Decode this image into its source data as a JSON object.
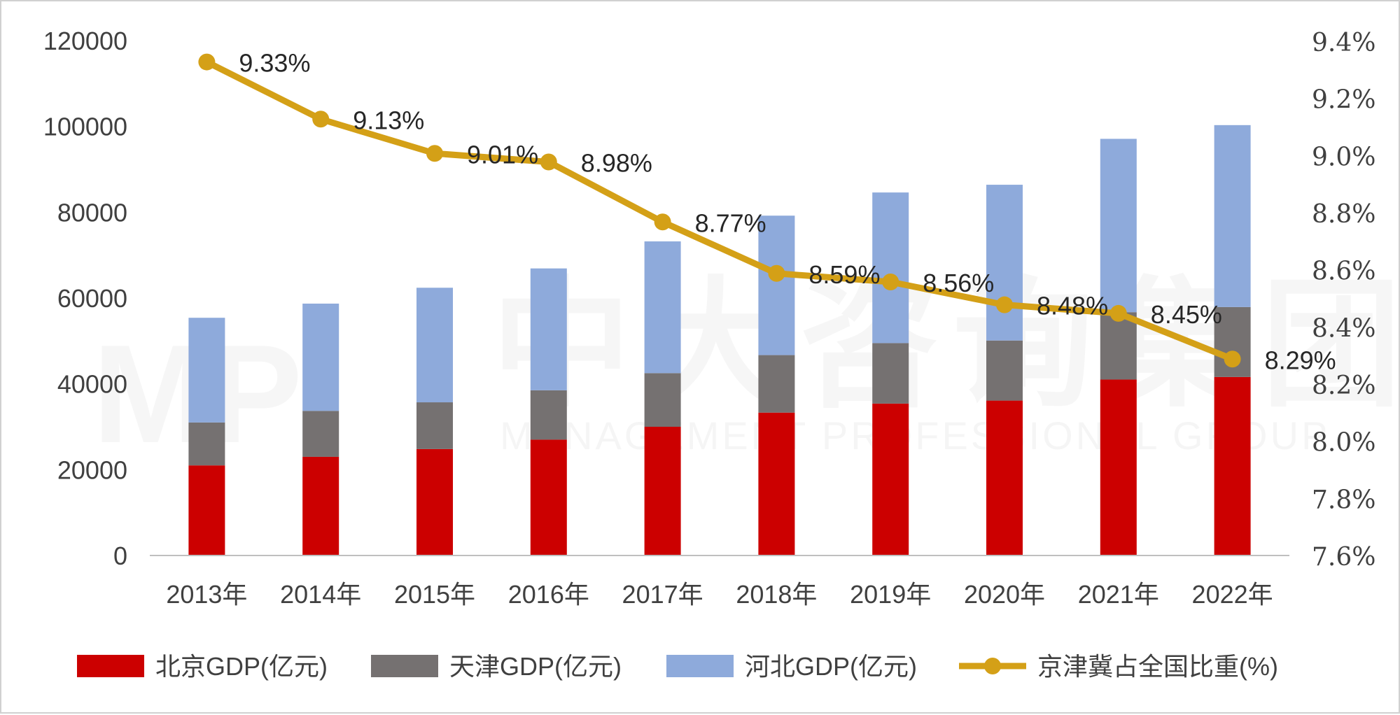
{
  "chart_data": {
    "type": "bar",
    "stacked": true,
    "categories": [
      "2013年",
      "2014年",
      "2015年",
      "2016年",
      "2017年",
      "2018年",
      "2019年",
      "2020年",
      "2021年",
      "2022年"
    ],
    "series": [
      {
        "name": "北京GDP(亿元)",
        "type": "bar",
        "axis": "left",
        "color": "#cc0000",
        "values": [
          21000,
          23000,
          24800,
          27000,
          30000,
          33300,
          35400,
          36100,
          41000,
          41600
        ]
      },
      {
        "name": "天津GDP(亿元)",
        "type": "bar",
        "axis": "left",
        "color": "#757171",
        "values": [
          10000,
          10700,
          10900,
          11500,
          12500,
          13400,
          14100,
          14000,
          15700,
          16300
        ]
      },
      {
        "name": "河北GDP(亿元)",
        "type": "bar",
        "axis": "left",
        "color": "#8eaadb",
        "values": [
          24400,
          25000,
          26700,
          28400,
          30700,
          32500,
          35100,
          36300,
          40400,
          42400
        ]
      },
      {
        "name": "京津冀占全国比重(%)",
        "type": "line",
        "axis": "right",
        "color": "#d4a017",
        "values": [
          9.33,
          9.13,
          9.01,
          8.98,
          8.77,
          8.59,
          8.56,
          8.48,
          8.45,
          8.29
        ],
        "labels": [
          "9.33%",
          "9.13%",
          "9.01%",
          "8.98%",
          "8.77%",
          "8.59%",
          "8.56%",
          "8.48%",
          "8.45%",
          "8.29%"
        ]
      }
    ],
    "y_left": {
      "min": 0,
      "max": 120000,
      "ticks": [
        "120000",
        "100000",
        "80000",
        "60000",
        "40000",
        "20000",
        "0"
      ],
      "tick_values": [
        120000,
        100000,
        80000,
        60000,
        40000,
        20000,
        0
      ]
    },
    "y_right": {
      "min": 7.6,
      "max": 9.4,
      "ticks": [
        "9.4%",
        "9.2%",
        "9.0%",
        "8.8%",
        "8.6%",
        "8.4%",
        "8.2%",
        "8.0%",
        "7.8%",
        "7.6%"
      ],
      "tick_values": [
        9.4,
        9.2,
        9.0,
        8.8,
        8.6,
        8.4,
        8.2,
        8.0,
        7.8,
        7.6
      ]
    },
    "legend_position": "bottom",
    "grid": false,
    "watermark": {
      "logo": "MP",
      "text_cn": "中大咨询集团",
      "text_en": "MANAGEMENT PROFESSIONAL GROUP"
    }
  }
}
